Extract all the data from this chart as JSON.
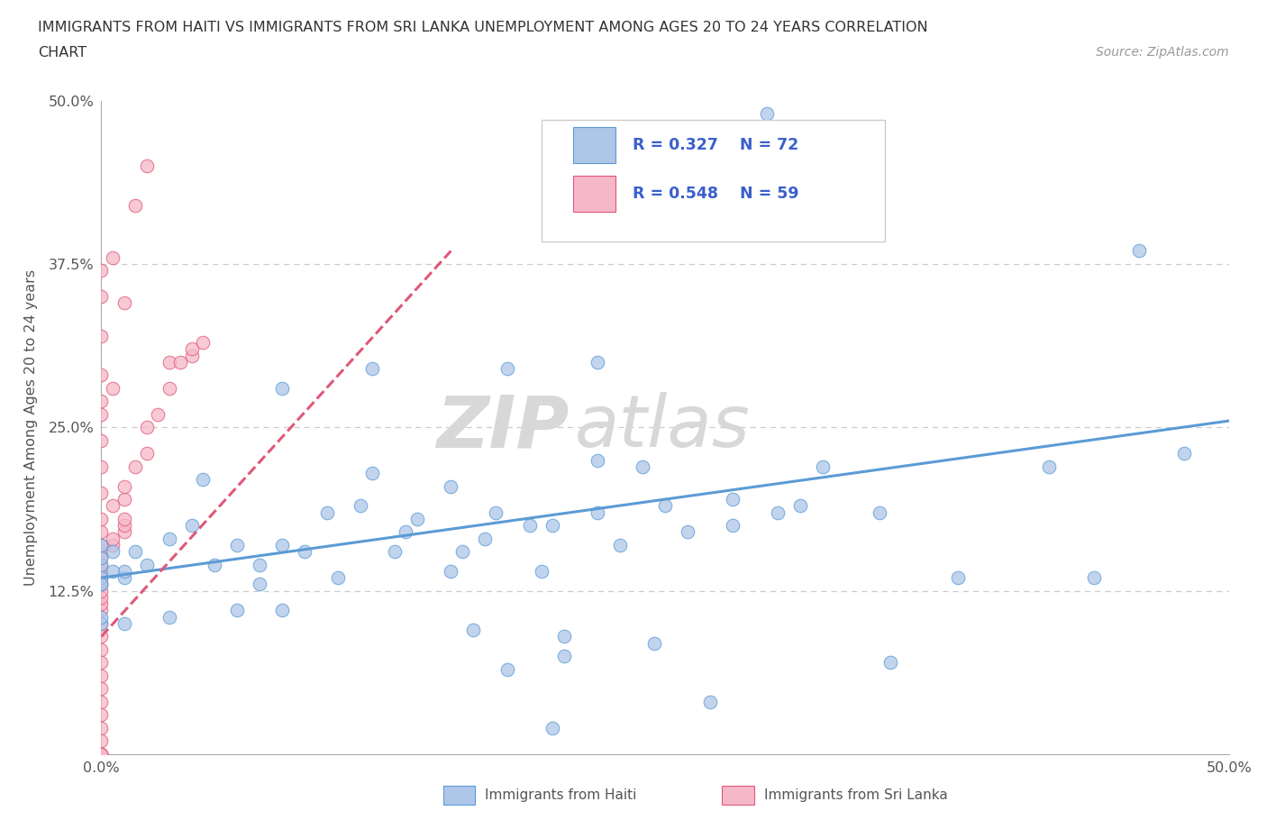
{
  "title_line1": "IMMIGRANTS FROM HAITI VS IMMIGRANTS FROM SRI LANKA UNEMPLOYMENT AMONG AGES 20 TO 24 YEARS CORRELATION",
  "title_line2": "CHART",
  "source": "Source: ZipAtlas.com",
  "ylabel": "Unemployment Among Ages 20 to 24 years",
  "xmin": 0.0,
  "xmax": 0.5,
  "ymin": 0.0,
  "ymax": 0.5,
  "haiti_color": "#aec6e8",
  "haiti_color_dark": "#5b9bd5",
  "srilanka_color": "#f5b8c8",
  "srilanka_color_dark": "#e05878",
  "haiti_R": 0.327,
  "haiti_N": 72,
  "srilanka_R": 0.548,
  "srilanka_N": 59,
  "watermark_zip": "ZIP",
  "watermark_atlas": "atlas",
  "legend_text_color": "#3a5fcd",
  "background_color": "#ffffff",
  "grid_color": "#cccccc",
  "haiti_trend_x": [
    0.0,
    0.5
  ],
  "haiti_trend_y": [
    0.135,
    0.255
  ],
  "srilanka_trend_x": [
    0.0,
    0.155
  ],
  "srilanka_trend_y": [
    0.09,
    0.385
  ]
}
